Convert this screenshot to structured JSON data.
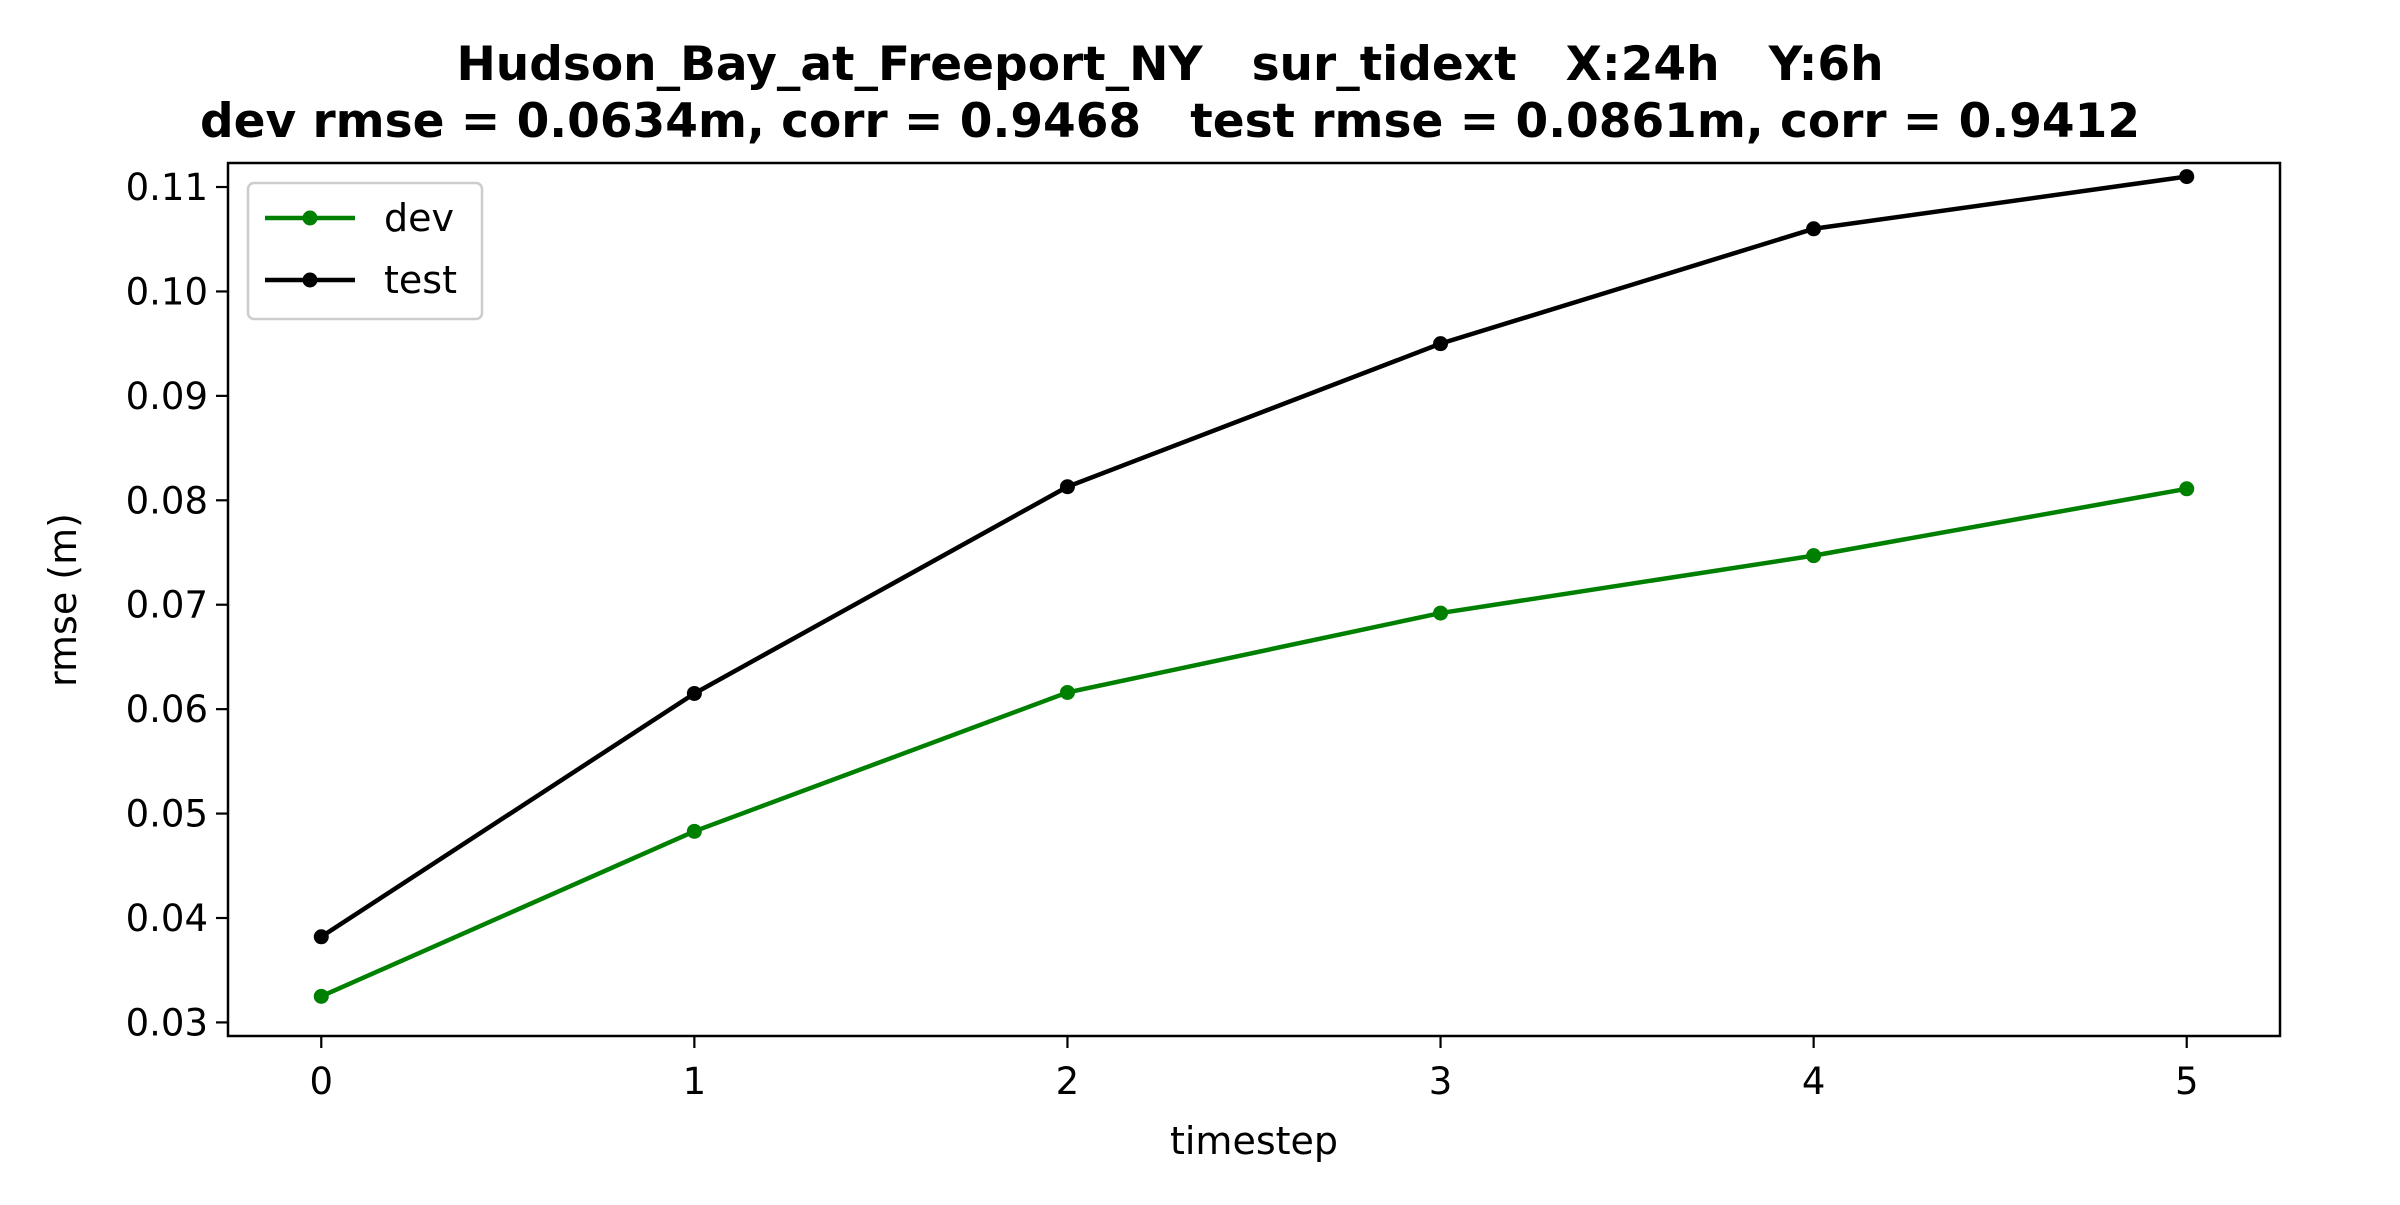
{
  "chart_data": {
    "type": "line",
    "title": "Hudson_Bay_at_Freeport_NY   sur_tidext   X:24h   Y:6h",
    "subtitle": "dev rmse = 0.0634m, corr = 0.9468   test rmse = 0.0861m, corr = 0.9412",
    "xlabel": "timestep",
    "ylabel": "rmse (m)",
    "x": [
      0,
      1,
      2,
      3,
      4,
      5
    ],
    "xlim": [
      -0.25,
      5.25
    ],
    "ylim": [
      0.0287,
      0.1123
    ],
    "xticks": [
      0,
      1,
      2,
      3,
      4,
      5
    ],
    "yticks": [
      0.03,
      0.04,
      0.05,
      0.06,
      0.07,
      0.08,
      0.09,
      0.1,
      0.11
    ],
    "ytick_labels": [
      "0.03",
      "0.04",
      "0.05",
      "0.06",
      "0.07",
      "0.08",
      "0.09",
      "0.10",
      "0.11"
    ],
    "grid": false,
    "legend_position": "top-left",
    "series": [
      {
        "name": "dev",
        "color": "#008000",
        "values": [
          0.0325,
          0.0483,
          0.0616,
          0.0692,
          0.0747,
          0.0811
        ]
      },
      {
        "name": "test",
        "color": "#000000",
        "values": [
          0.0382,
          0.0615,
          0.0813,
          0.095,
          0.106,
          0.111
        ]
      }
    ]
  }
}
